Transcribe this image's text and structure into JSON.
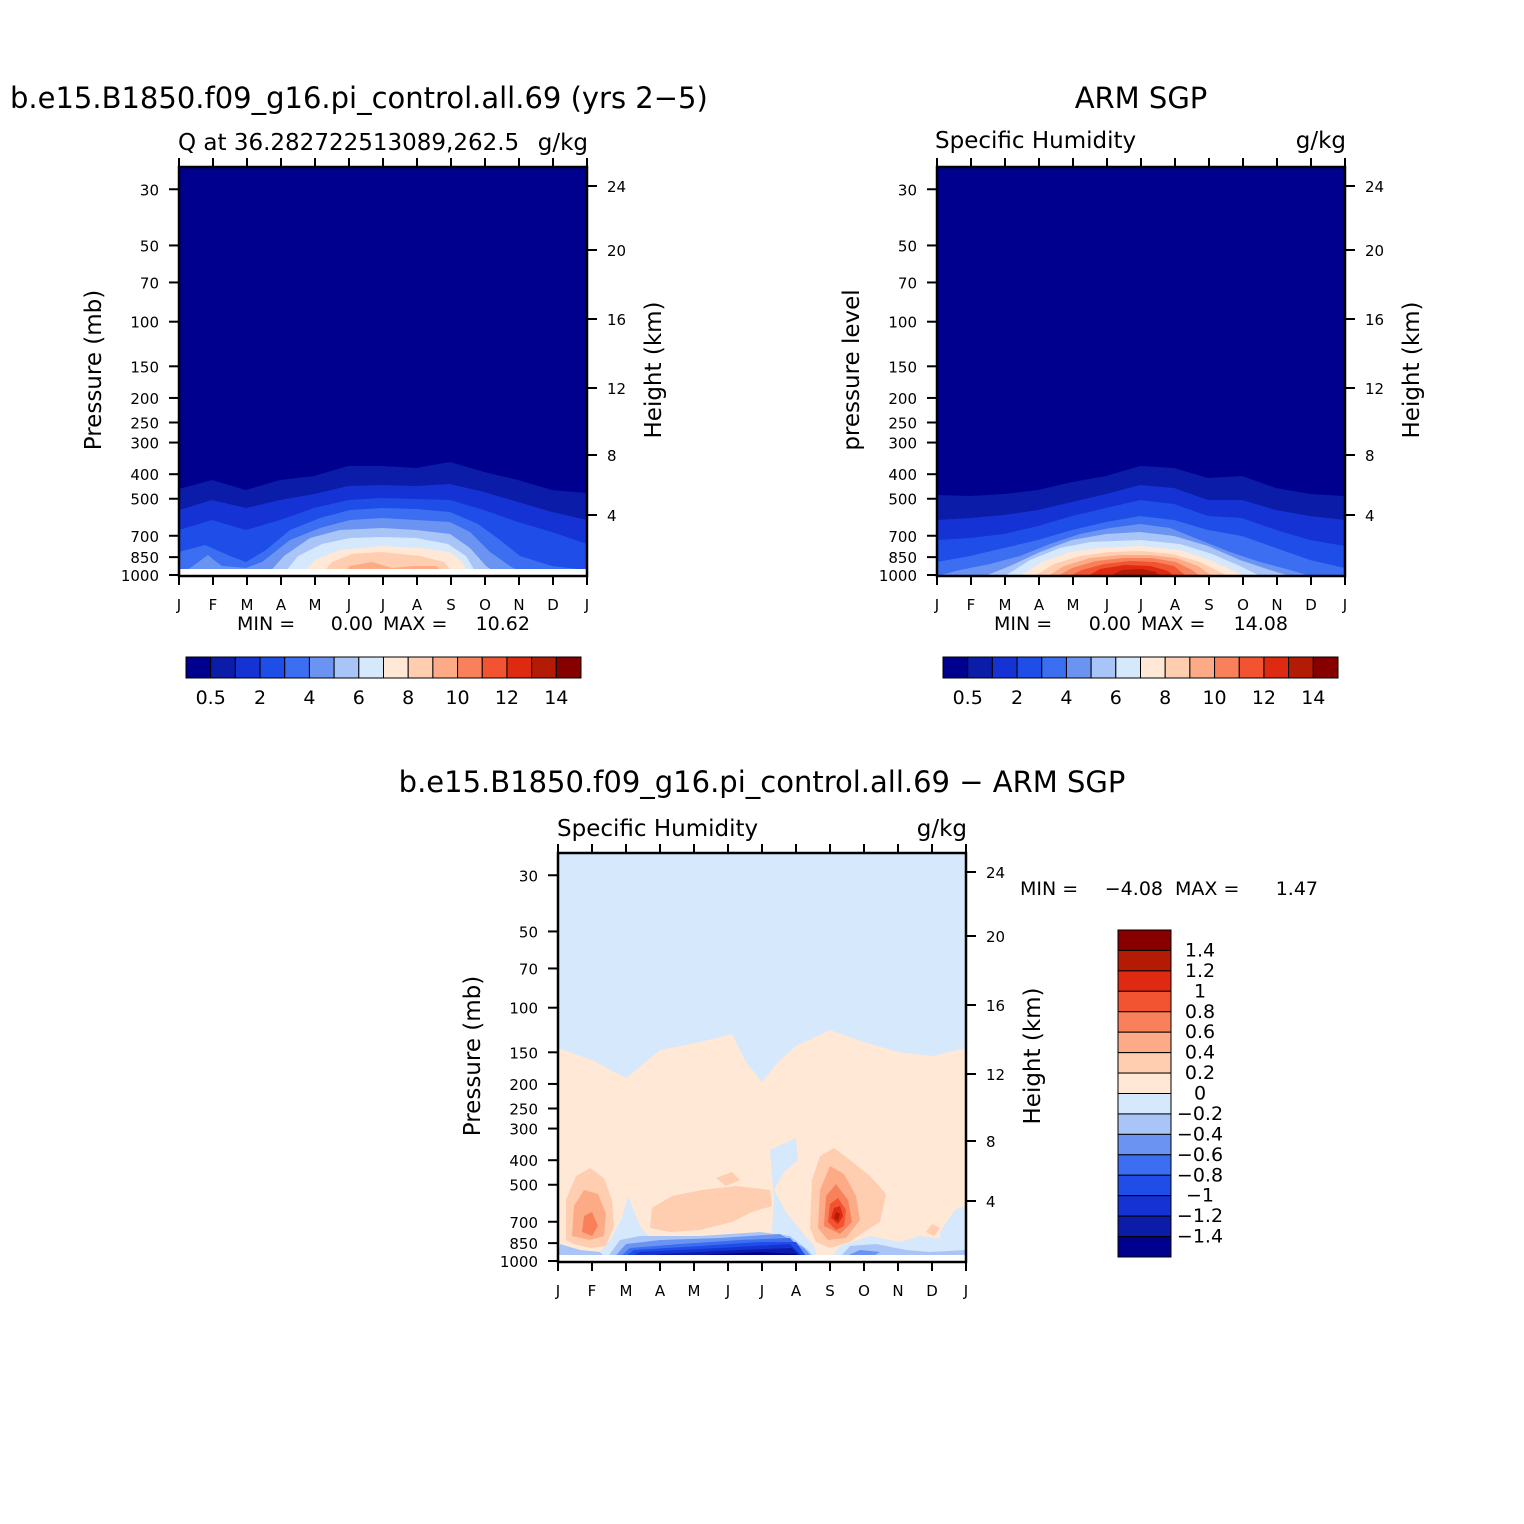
{
  "months": [
    "J",
    "F",
    "M",
    "A",
    "M",
    "J",
    "J",
    "A",
    "S",
    "O",
    "N",
    "D",
    "J"
  ],
  "pressure_ticks": [
    "30",
    "50",
    "70",
    "100",
    "150",
    "200",
    "250",
    "300",
    "400",
    "500",
    "700",
    "850",
    "1000"
  ],
  "pressure_values": [
    30,
    50,
    70,
    100,
    150,
    200,
    250,
    300,
    400,
    500,
    700,
    850,
    1000
  ],
  "height_ticks": [
    "24",
    "20",
    "16",
    "12",
    "8",
    "4"
  ],
  "height_values": [
    24,
    20,
    16,
    12,
    8,
    4
  ],
  "colors": {
    "abs_scale": [
      "#00008f",
      "#0a1ca8",
      "#1532d4",
      "#1e4de8",
      "#3b6ef0",
      "#6b94f2",
      "#a9c5f7",
      "#d6e8fb",
      "#ffe8d6",
      "#ffcdb0",
      "#fdab86",
      "#f8805b",
      "#f25330",
      "#dd2a10",
      "#b41b04",
      "#870000"
    ],
    "diff_scale": [
      "#00008f",
      "#0a1ca8",
      "#1532d4",
      "#1e4de8",
      "#3b6ef0",
      "#6b94f2",
      "#a9c5f7",
      "#d6e8fb",
      "#ffe8d6",
      "#ffcdb0",
      "#fdab86",
      "#f8805b",
      "#f25330",
      "#dd2a10",
      "#b41b04",
      "#870000"
    ]
  },
  "panel_model": {
    "title": "b.e15.B1850.f09_g16.pi_control.all.69 (yrs 2−5)",
    "left_string": "Q at 36.282722513089,262.5",
    "right_string": "g/kg",
    "ylabel_left": "Pressure (mb)",
    "ylabel_right": "Height (km)",
    "min_label": "MIN =",
    "min_value": "0.00",
    "max_label": "MAX =",
    "max_value": "10.62",
    "colorbar_labels": [
      "0.5",
      "2",
      "4",
      "6",
      "8",
      "10",
      "12",
      "14"
    ]
  },
  "panel_obs": {
    "title": "ARM SGP",
    "left_string": "Specific Humidity",
    "right_string": "g/kg",
    "ylabel_left": "pressure level",
    "ylabel_right": "Height (km)",
    "min_label": "MIN =",
    "min_value": "0.00",
    "max_label": "MAX =",
    "max_value": "14.08",
    "colorbar_labels": [
      "0.5",
      "2",
      "4",
      "6",
      "8",
      "10",
      "12",
      "14"
    ]
  },
  "panel_diff": {
    "title": "b.e15.B1850.f09_g16.pi_control.all.69 − ARM SGP",
    "left_string": "Specific Humidity",
    "right_string": "g/kg",
    "ylabel_left": "Pressure (mb)",
    "ylabel_right": "Height (km)",
    "min_label": "MIN =",
    "min_value": "−4.08",
    "max_label": "MAX =",
    "max_value": "1.47",
    "colorbar_labels": [
      "1.4",
      "1.2",
      "1",
      "0.8",
      "0.6",
      "0.4",
      "0.2",
      "0",
      "−0.2",
      "−0.4",
      "−0.6",
      "−0.8",
      "−1",
      "−1.2",
      "−1.4"
    ]
  },
  "chart_data": [
    {
      "type": "heatmap",
      "title": "b.e15.B1850.f09_g16.pi_control.all.69 (yrs 2−5)",
      "subtitle": "Q at 36.282722513089,262.5",
      "units": "g/kg",
      "x": [
        "J",
        "F",
        "M",
        "A",
        "M",
        "J",
        "J",
        "A",
        "S",
        "O",
        "N",
        "D",
        "J"
      ],
      "ylabel": "Pressure (mb)",
      "ylabel_right": "Height (km)",
      "ylim": [
        1000,
        20
      ],
      "y_scale": "log",
      "levels": [
        0.5,
        2,
        4,
        6,
        8,
        10,
        12,
        14
      ],
      "min": 0.0,
      "max": 10.62,
      "surface_values_gkg": [
        3.5,
        3.9,
        5.0,
        6.5,
        8.0,
        9.5,
        10.3,
        10.0,
        9.0,
        6.2,
        4.0,
        3.5,
        3.5
      ]
    },
    {
      "type": "heatmap",
      "title": "ARM SGP",
      "subtitle": "Specific Humidity",
      "units": "g/kg",
      "x": [
        "J",
        "F",
        "M",
        "A",
        "M",
        "J",
        "J",
        "A",
        "S",
        "O",
        "N",
        "D",
        "J"
      ],
      "ylabel": "pressure level",
      "ylabel_right": "Height (km)",
      "ylim": [
        1000,
        20
      ],
      "y_scale": "log",
      "levels": [
        0.5,
        2,
        4,
        6,
        8,
        10,
        12,
        14
      ],
      "min": 0.0,
      "max": 14.08,
      "surface_values_gkg": [
        3.5,
        4.0,
        5.0,
        6.8,
        9.0,
        12.0,
        14.0,
        13.0,
        10.5,
        7.5,
        5.0,
        3.8,
        3.5
      ]
    },
    {
      "type": "heatmap",
      "title": "b.e15.B1850.f09_g16.pi_control.all.69 − ARM SGP",
      "subtitle": "Specific Humidity",
      "units": "g/kg",
      "x": [
        "J",
        "F",
        "M",
        "A",
        "M",
        "J",
        "J",
        "A",
        "S",
        "O",
        "N",
        "D",
        "J"
      ],
      "ylabel": "Pressure (mb)",
      "ylabel_right": "Height (km)",
      "ylim": [
        1000,
        20
      ],
      "y_scale": "log",
      "levels": [
        -1.4,
        -1.2,
        -1,
        -0.8,
        -0.6,
        -0.4,
        -0.2,
        0,
        0.2,
        0.4,
        0.6,
        0.8,
        1,
        1.2,
        1.4
      ],
      "min": -4.08,
      "max": 1.47
    }
  ]
}
